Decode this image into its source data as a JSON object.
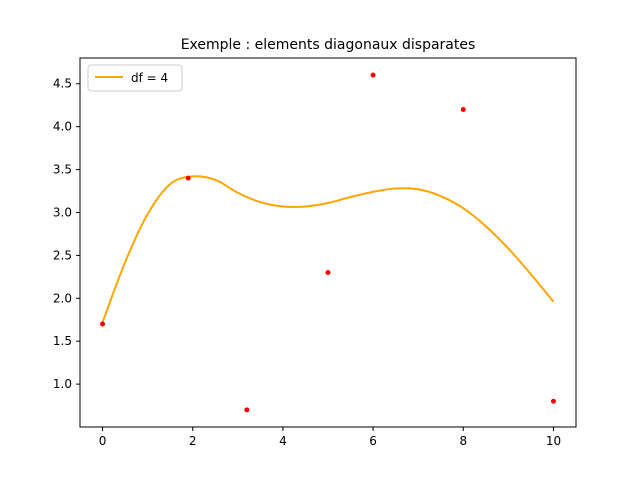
{
  "chart_data": {
    "type": "scatter",
    "title": "Exemple : elements diagonaux disparates",
    "xlabel": "",
    "ylabel": "",
    "xlim": [
      -0.5,
      10.5
    ],
    "ylim": [
      0.5,
      4.8
    ],
    "xticks": [
      0,
      2,
      4,
      6,
      8,
      10
    ],
    "yticks": [
      1.0,
      1.5,
      2.0,
      2.5,
      3.0,
      3.5,
      4.0,
      4.5
    ],
    "xtick_labels": [
      "0",
      "2",
      "4",
      "6",
      "8",
      "10"
    ],
    "ytick_labels": [
      "1.0",
      "1.5",
      "2.0",
      "2.5",
      "3.0",
      "3.5",
      "4.0",
      "4.5"
    ],
    "grid": false,
    "legend_position": "upper-left",
    "points": {
      "x": [
        0,
        1.9,
        3.2,
        5,
        6,
        8,
        10
      ],
      "y": [
        1.7,
        3.4,
        0.7,
        2.3,
        4.6,
        4.2,
        0.8
      ],
      "color": "#ff0000"
    },
    "series": [
      {
        "name": "df = 4",
        "color": "#ffa500",
        "x": [
          0,
          0.5,
          1,
          1.5,
          2,
          2.5,
          3,
          3.5,
          4,
          4.5,
          5,
          5.5,
          6,
          6.5,
          7,
          7.5,
          8,
          8.5,
          9,
          9.5,
          10
        ],
        "y": [
          1.72,
          2.42,
          2.98,
          3.33,
          3.42,
          3.38,
          3.23,
          3.12,
          3.07,
          3.07,
          3.11,
          3.18,
          3.24,
          3.28,
          3.27,
          3.19,
          3.05,
          2.84,
          2.58,
          2.28,
          1.96
        ]
      }
    ]
  }
}
